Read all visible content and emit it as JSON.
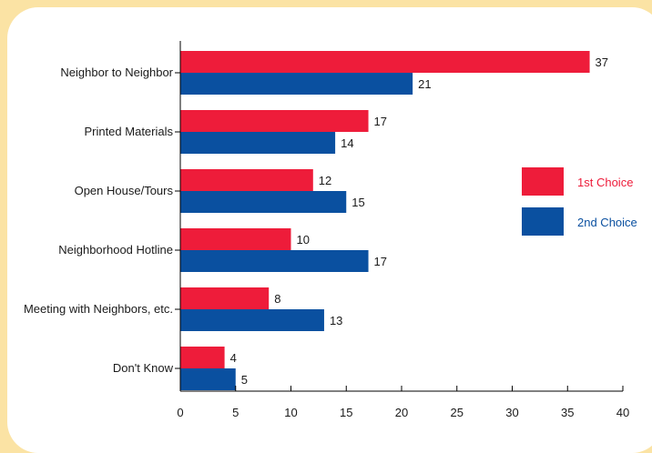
{
  "chart_data": {
    "type": "bar",
    "orientation": "horizontal",
    "categories": [
      "Neighbor to Neighbor",
      "Printed Materials",
      "Open House/Tours",
      "Neighborhood Hotline",
      "Meeting with Neighbors, etc.",
      "Don't Know"
    ],
    "series": [
      {
        "name": "1st Choice",
        "color": "#ee1c3a",
        "values": [
          37,
          17,
          12,
          10,
          8,
          4
        ]
      },
      {
        "name": "2nd Choice",
        "color": "#0a50a0",
        "values": [
          21,
          14,
          15,
          17,
          13,
          5
        ]
      }
    ],
    "xlim": [
      0,
      40
    ],
    "xticks": [
      0,
      5,
      10,
      15,
      20,
      25,
      30,
      35,
      40
    ],
    "legend_position": "right",
    "grid": false,
    "title": "",
    "xlabel": "",
    "ylabel": ""
  }
}
